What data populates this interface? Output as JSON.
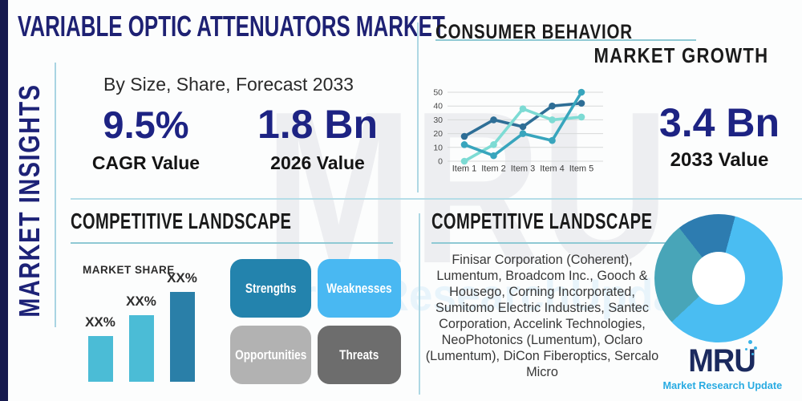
{
  "colors": {
    "navy_title": "#1e2173",
    "navy_stat": "#1d2383",
    "navy_edge_bar": "#171b4f",
    "heading_black": "#1b1b1b",
    "divider_teal": "#b5dde8",
    "underline_teal": "#8fc9d4",
    "logo_navy": "#1b2a5e",
    "logo_blue": "#29abe2"
  },
  "sidebar": {
    "label": "MARKET INSIGHTS"
  },
  "header": {
    "title": "VARIABLE OPTIC ATTENUATORS MARKET",
    "subtitle": "By Size, Share, Forecast 2033"
  },
  "stats": {
    "cagr": {
      "value": "9.5%",
      "label": "CAGR Value"
    },
    "value_2026": {
      "value": "1.8 Bn",
      "label": "2026 Value"
    },
    "value_2033": {
      "value": "3.4 Bn",
      "label": "2033 Value"
    }
  },
  "sections": {
    "consumer_behavior": "CONSUMER BEHAVIOR",
    "market_growth": "MARKET GROWTH",
    "competitive_left": "COMPETITIVE LANDSCAPE",
    "competitive_right": "COMPETITIVE LANDSCAPE"
  },
  "market_share": {
    "label": "MARKET SHARE"
  },
  "chart_data": [
    {
      "type": "line",
      "title": "",
      "x": [
        "Item 1",
        "Item 2",
        "Item 3",
        "Item 4",
        "Item 5"
      ],
      "series": [
        {
          "name": "line-dark-blue",
          "color": "#2e6e96",
          "values": [
            18,
            30,
            25,
            40,
            42
          ]
        },
        {
          "name": "line-light-aqua",
          "color": "#7ddbd4",
          "values": [
            0,
            12,
            38,
            30,
            32
          ]
        },
        {
          "name": "line-teal",
          "color": "#38a5bd",
          "values": [
            12,
            4,
            20,
            15,
            50
          ]
        }
      ],
      "ylim": [
        0,
        50
      ],
      "yticks": [
        0,
        10,
        20,
        30,
        40,
        50
      ],
      "grid": true,
      "legend": "none"
    },
    {
      "type": "bar",
      "title": "MARKET SHARE",
      "categories": [
        "XX%",
        "XX%",
        "XX%"
      ],
      "values": [
        51,
        74,
        100
      ],
      "value_note": "relative bar heights, % of tallest; data labels are XX% placeholders",
      "colors": [
        "#4bbcd6",
        "#4bbcd6",
        "#2a7fa8"
      ]
    },
    {
      "type": "pie",
      "title": "",
      "donut": true,
      "start_deg": 322,
      "slices": [
        {
          "name": "dark-blue",
          "deg": 53,
          "color": "#2d7cb0"
        },
        {
          "name": "light-blue",
          "deg": 212,
          "color": "#4abdf2"
        },
        {
          "name": "teal",
          "deg": 95,
          "color": "#48a5b8"
        }
      ]
    }
  ],
  "swot": [
    {
      "label": "Strengths",
      "color": "#2383ad"
    },
    {
      "label": "Weaknesses",
      "color": "#49b8f2"
    },
    {
      "label": "Opportunities",
      "color": "#b2b2b2"
    },
    {
      "label": "Threats",
      "color": "#6d6d6d"
    }
  ],
  "companies": "Finisar Corporation (Coherent), Lumentum, Broadcom Inc., Gooch & Housego, Corning Incorporated, Sumitomo Electric Industries, Santec Corporation, Accelink Technologies, NeoPhotonics (Lumentum), Oclaro (Lumentum), DiCon Fiberoptics, Sercalo Micro",
  "logo": {
    "name": "MRU",
    "tagline": "Market Research Update"
  },
  "watermark": {
    "text": "MRU",
    "sub": "MarketResearchUpdate"
  }
}
